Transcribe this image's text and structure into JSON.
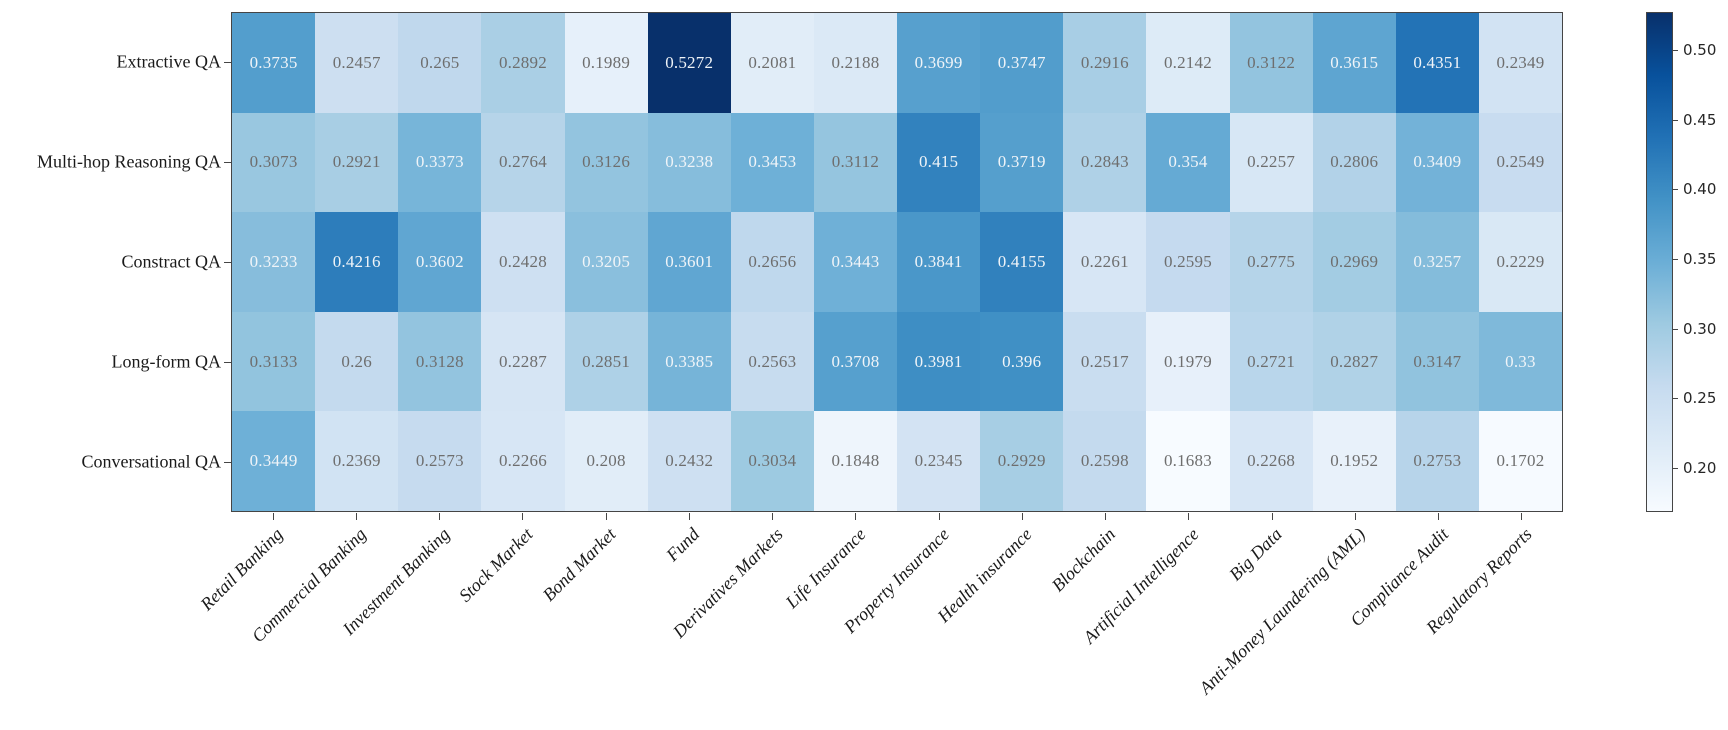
{
  "figure": {
    "background": "#ffffff",
    "axis_color": "#454545",
    "annotation_color_on_light": "#6e6e6e",
    "annotation_color_on_dark": "#f0f4f8"
  },
  "chart_data": {
    "type": "heatmap",
    "title": "",
    "xlabel": "",
    "ylabel": "",
    "rows": [
      "Extractive QA",
      "Multi-hop Reasoning QA",
      "Constract QA",
      "Long-form QA",
      "Conversational QA"
    ],
    "columns": [
      "Retail Banking",
      "Commercial Banking",
      "Investment Banking",
      "Stock Market",
      "Bond Market",
      "Fund",
      "Derivatives Markets",
      "Life Insurance",
      "Property Insurance",
      "Health insurance",
      "Blockchain",
      "Artificial Intelligence",
      "Big Data",
      "Anti-Money Laundering (AML)",
      "Compliance Audit",
      "Regulatory Reports"
    ],
    "values": [
      [
        "0.3735",
        "0.2457",
        "0.265",
        "0.2892",
        "0.1989",
        "0.5272",
        "0.2081",
        "0.2188",
        "0.3699",
        "0.3747",
        "0.2916",
        "0.2142",
        "0.3122",
        "0.3615",
        "0.4351",
        "0.2349"
      ],
      [
        "0.3073",
        "0.2921",
        "0.3373",
        "0.2764",
        "0.3126",
        "0.3238",
        "0.3453",
        "0.3112",
        "0.415",
        "0.3719",
        "0.2843",
        "0.354",
        "0.2257",
        "0.2806",
        "0.3409",
        "0.2549"
      ],
      [
        "0.3233",
        "0.4216",
        "0.3602",
        "0.2428",
        "0.3205",
        "0.3601",
        "0.2656",
        "0.3443",
        "0.3841",
        "0.4155",
        "0.2261",
        "0.2595",
        "0.2775",
        "0.2969",
        "0.3257",
        "0.2229"
      ],
      [
        "0.3133",
        "0.26",
        "0.3128",
        "0.2287",
        "0.2851",
        "0.3385",
        "0.2563",
        "0.3708",
        "0.3981",
        "0.396",
        "0.2517",
        "0.1979",
        "0.2721",
        "0.2827",
        "0.3147",
        "0.33"
      ],
      [
        "0.3449",
        "0.2369",
        "0.2573",
        "0.2266",
        "0.208",
        "0.2432",
        "0.3034",
        "0.1848",
        "0.2345",
        "0.2929",
        "0.2598",
        "0.1683",
        "0.2268",
        "0.1952",
        "0.2753",
        "0.1702"
      ]
    ],
    "vmin": 0.1683,
    "vmax": 0.5272,
    "colormap": "Blues",
    "colormap_stops": [
      "#f7fbff",
      "#deebf7",
      "#c6dbef",
      "#9ecae1",
      "#6baed6",
      "#4292c6",
      "#2171b5",
      "#08519c",
      "#08306b"
    ],
    "white_text_norm_threshold": 0.415,
    "grid": false,
    "legend_position": "right-colorbar",
    "colorbar": {
      "tick_labels": [
        "0.50",
        "0.45",
        "0.40",
        "0.35",
        "0.30",
        "0.25",
        "0.20"
      ],
      "tick_values": [
        0.5,
        0.45,
        0.4,
        0.35,
        0.3,
        0.25,
        0.2
      ]
    }
  }
}
